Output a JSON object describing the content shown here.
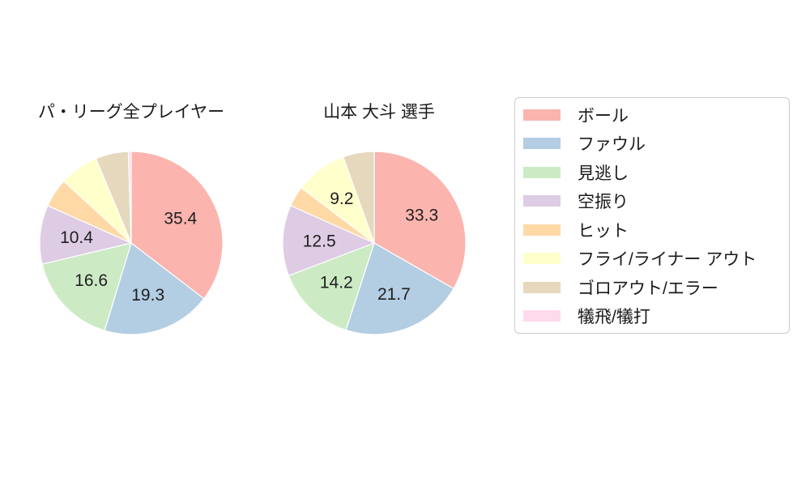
{
  "figure": {
    "background": "#ffffff",
    "text_color": "#1a1a1a"
  },
  "chart_data": [
    {
      "type": "pie",
      "title": "パ・リーグ全プレイヤー",
      "start_angle": "top",
      "direction": "clockwise",
      "categories": [
        "ボール",
        "ファウル",
        "見逃し",
        "空振り",
        "ヒット",
        "フライ/ライナー アウト",
        "ゴロアウト/エラー",
        "犠飛/犠打"
      ],
      "values": [
        35.4,
        19.3,
        16.6,
        10.4,
        5.1,
        6.9,
        5.8,
        0.5
      ],
      "slice_labels": [
        "35.4",
        "19.3",
        "16.6",
        "10.4",
        "",
        "",
        "",
        ""
      ],
      "colors": [
        "#fbb4ae",
        "#b3cde3",
        "#ccebc5",
        "#decbe4",
        "#fed9a6",
        "#ffffcc",
        "#e5d8bd",
        "#fddaec"
      ]
    },
    {
      "type": "pie",
      "title": "山本 大斗  選手",
      "start_angle": "top",
      "direction": "clockwise",
      "categories": [
        "ボール",
        "ファウル",
        "見逃し",
        "空振り",
        "ヒット",
        "フライ/ライナー アウト",
        "ゴロアウト/エラー",
        "犠飛/犠打"
      ],
      "values": [
        33.3,
        21.7,
        14.2,
        12.5,
        3.6,
        9.2,
        5.5,
        0
      ],
      "slice_labels": [
        "33.3",
        "21.7",
        "14.2",
        "12.5",
        "",
        "9.2",
        "",
        ""
      ],
      "colors": [
        "#fbb4ae",
        "#b3cde3",
        "#ccebc5",
        "#decbe4",
        "#fed9a6",
        "#ffffcc",
        "#e5d8bd",
        "#fddaec"
      ]
    }
  ],
  "legend": {
    "position": "right",
    "border_color": "#cbcbcb",
    "items": [
      {
        "label": "ボール",
        "color": "#fbb4ae"
      },
      {
        "label": "ファウル",
        "color": "#b3cde3"
      },
      {
        "label": "見逃し",
        "color": "#ccebc5"
      },
      {
        "label": "空振り",
        "color": "#decbe4"
      },
      {
        "label": "ヒット",
        "color": "#fed9a6"
      },
      {
        "label": "フライ/ライナー アウト",
        "color": "#ffffcc"
      },
      {
        "label": "ゴロアウト/エラー",
        "color": "#e5d8bd"
      },
      {
        "label": "犠飛/犠打",
        "color": "#fddaec"
      }
    ]
  }
}
